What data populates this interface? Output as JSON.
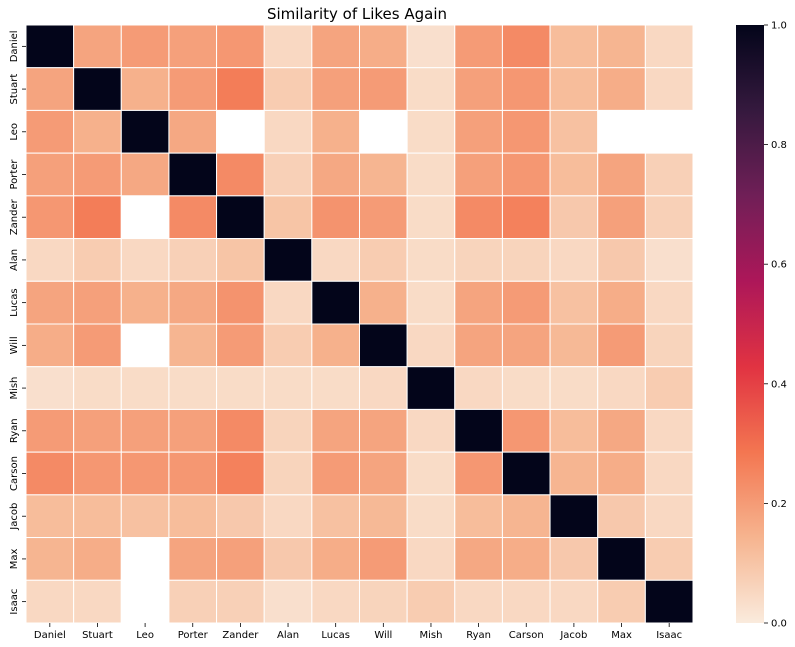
{
  "chart_data": {
    "type": "heatmap",
    "title": "Similarity of Likes Again",
    "xlabel": "",
    "ylabel": "",
    "rows": [
      "Daniel",
      "Stuart",
      "Leo",
      "Porter",
      "Zander",
      "Alan",
      "Lucas",
      "Will",
      "Mish",
      "Ryan",
      "Carson",
      "Jacob",
      "Max",
      "Isaac"
    ],
    "columns": [
      "Daniel",
      "Stuart",
      "Leo",
      "Porter",
      "Zander",
      "Alan",
      "Lucas",
      "Will",
      "Mish",
      "Ryan",
      "Carson",
      "Jacob",
      "Max",
      "Isaac"
    ],
    "values": [
      [
        1.0,
        0.18,
        0.2,
        0.19,
        0.21,
        0.05,
        0.18,
        0.16,
        0.03,
        0.2,
        0.24,
        0.12,
        0.14,
        0.05
      ],
      [
        0.18,
        1.0,
        0.15,
        0.2,
        0.27,
        0.08,
        0.19,
        0.2,
        0.04,
        0.19,
        0.21,
        0.12,
        0.16,
        0.05
      ],
      [
        0.2,
        0.15,
        1.0,
        0.17,
        null,
        0.05,
        0.15,
        null,
        0.04,
        0.19,
        0.21,
        0.11,
        null,
        null
      ],
      [
        0.19,
        0.2,
        0.17,
        1.0,
        0.24,
        0.07,
        0.17,
        0.14,
        0.04,
        0.19,
        0.21,
        0.12,
        0.18,
        0.07
      ],
      [
        0.21,
        0.27,
        null,
        0.24,
        1.0,
        0.1,
        0.22,
        0.2,
        0.04,
        0.24,
        0.26,
        0.09,
        0.19,
        0.07
      ],
      [
        0.05,
        0.08,
        0.05,
        0.07,
        0.1,
        1.0,
        0.05,
        0.08,
        0.04,
        0.06,
        0.06,
        0.05,
        0.09,
        0.03
      ],
      [
        0.18,
        0.19,
        0.15,
        0.17,
        0.22,
        0.05,
        1.0,
        0.15,
        0.04,
        0.18,
        0.2,
        0.11,
        0.16,
        0.05
      ],
      [
        0.16,
        0.2,
        null,
        0.14,
        0.2,
        0.08,
        0.15,
        1.0,
        0.05,
        0.18,
        0.18,
        0.13,
        0.2,
        0.06
      ],
      [
        0.03,
        0.04,
        0.04,
        0.04,
        0.04,
        0.04,
        0.04,
        0.05,
        1.0,
        0.05,
        0.04,
        0.04,
        0.05,
        0.08
      ],
      [
        0.2,
        0.19,
        0.19,
        0.19,
        0.24,
        0.06,
        0.18,
        0.18,
        0.05,
        1.0,
        0.21,
        0.12,
        0.17,
        0.05
      ],
      [
        0.24,
        0.21,
        0.21,
        0.21,
        0.26,
        0.06,
        0.2,
        0.18,
        0.04,
        0.21,
        1.0,
        0.14,
        0.16,
        0.05
      ],
      [
        0.12,
        0.12,
        0.11,
        0.12,
        0.09,
        0.05,
        0.11,
        0.13,
        0.04,
        0.12,
        0.14,
        1.0,
        0.09,
        0.05
      ],
      [
        0.14,
        0.16,
        null,
        0.18,
        0.19,
        0.09,
        0.16,
        0.2,
        0.05,
        0.17,
        0.16,
        0.09,
        1.0,
        0.08
      ],
      [
        0.05,
        0.05,
        null,
        0.07,
        0.07,
        0.03,
        0.05,
        0.06,
        0.08,
        0.05,
        0.05,
        0.05,
        0.08,
        1.0
      ]
    ],
    "colorbar": {
      "min": 0.0,
      "max": 1.0,
      "ticks": [
        "0.0",
        "0.2",
        "0.4",
        "0.6",
        "0.8",
        "1.0"
      ],
      "colormap": "rocket_r",
      "stops": [
        "#faebdd",
        "#f6b48f",
        "#f37651",
        "#e13342",
        "#ad1759",
        "#701f57",
        "#35193e",
        "#03051a"
      ]
    },
    "grid": true,
    "gridline_color": "#ffffff",
    "missing_color": "#ffffff"
  }
}
